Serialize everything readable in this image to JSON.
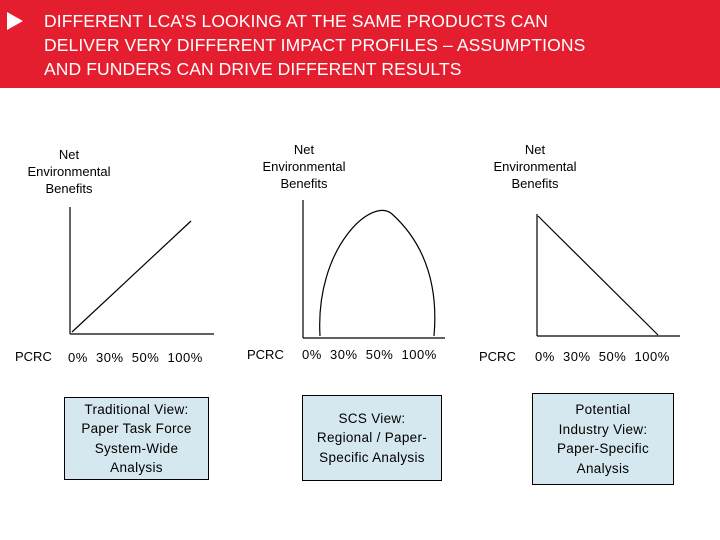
{
  "header": {
    "title": "DIFFERENT LCA’S LOOKING AT THE SAME PRODUCTS CAN\nDELIVER VERY DIFFERENT IMPACT PROFILES – ASSUMPTIONS\nAND FUNDERS CAN DRIVE DIFFERENT RESULTS",
    "bullet_icon": "triangle-bullet-icon",
    "background_color": "#e41e2f"
  },
  "panels": [
    {
      "y_label": "Net\nEnvironmental\nBenefits",
      "pcrc_label": "PCRC",
      "x_label": "0%  30%  50%  100%",
      "curve": "rising-line",
      "caption": "Traditional View:\nPaper Task Force\nSystem-Wide\nAnalysis"
    },
    {
      "y_label": "Net\nEnvironmental\nBenefits",
      "pcrc_label": "PCRC",
      "x_label": "0%  30%  50%  100%",
      "curve": "inverted-u",
      "caption": "SCS View:\nRegional / Paper-\nSpecific Analysis"
    },
    {
      "y_label": "Net\nEnvironmental\nBenefits",
      "pcrc_label": "PCRC",
      "x_label": "0%  30%  50%  100%",
      "curve": "falling-line",
      "caption": "Potential\nIndustry View:\nPaper-Specific\nAnalysis"
    }
  ],
  "colors": {
    "caption_fill": "#d5e8ef",
    "axis": "#000000"
  }
}
